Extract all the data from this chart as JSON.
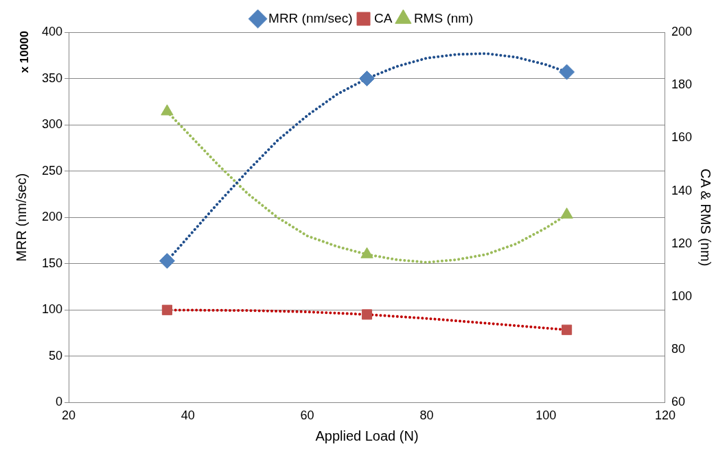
{
  "chart_data": {
    "type": "scatter",
    "xlabel": "Applied Load (N)",
    "ylabel": "MRR (nm/sec)",
    "y2label": "CA & RMS (nm)",
    "annotations": [
      "x 10000"
    ],
    "xlim": [
      20,
      120
    ],
    "xticks": [
      20,
      40,
      60,
      80,
      100,
      120
    ],
    "ylim": [
      0,
      400
    ],
    "yticks": [
      0,
      50,
      100,
      150,
      200,
      250,
      300,
      350,
      400
    ],
    "y2lim": [
      60,
      200
    ],
    "y2ticks": [
      60,
      80,
      100,
      120,
      140,
      160,
      180,
      200
    ],
    "grid": "y",
    "legend": "top",
    "series": [
      {
        "type": "line",
        "color": "#1f4e8c",
        "line_style": "dotted",
        "marker": "none",
        "x": [
          36.5,
          45,
          50,
          55,
          60,
          65,
          70,
          75,
          80,
          85,
          90,
          95,
          100,
          103.5
        ],
        "values": [
          153,
          215,
          250,
          283,
          310,
          333,
          350,
          363,
          372,
          376,
          377,
          373,
          365,
          357
        ]
      },
      {
        "type": "line",
        "color": "#c00000",
        "line_style": "dotted",
        "marker": "none",
        "axis": "y2",
        "x": [
          36.5,
          50,
          60,
          70,
          80,
          90,
          103.5
        ],
        "values": [
          95,
          94.8,
          94.3,
          93.3,
          91.8,
          90,
          87.5
        ]
      },
      {
        "type": "line",
        "color": "#9bbb59",
        "line_style": "dotted",
        "marker": "none",
        "axis": "y2",
        "x": [
          36.5,
          45,
          50,
          55,
          60,
          65,
          70,
          75,
          80,
          85,
          90,
          95,
          100,
          103.5
        ],
        "values": [
          170,
          150,
          139,
          130,
          123,
          119,
          116,
          114,
          113,
          114,
          116,
          120,
          126,
          131
        ]
      },
      {
        "name": "MRR (nm/sec)",
        "color": "#4f81bd",
        "marker": "diamond",
        "x": [
          36.5,
          70,
          103.5
        ],
        "values": [
          153,
          350,
          357
        ]
      },
      {
        "name": "CA",
        "color": "#c0504d",
        "marker": "square",
        "axis": "y2",
        "x": [
          36.5,
          70,
          103.5
        ],
        "values": [
          95,
          93.3,
          87.5
        ]
      },
      {
        "name": "RMS (nm)",
        "color": "#9bbb59",
        "marker": "triangle",
        "axis": "y2",
        "x": [
          36.5,
          70,
          103.5
        ],
        "values": [
          170,
          116,
          131
        ]
      }
    ]
  }
}
